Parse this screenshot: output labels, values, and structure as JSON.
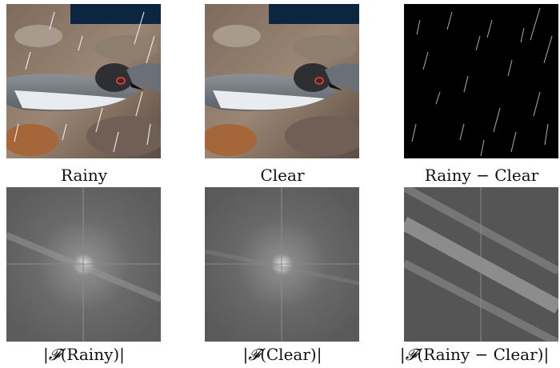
{
  "figure": {
    "panels": [
      {
        "caption": "Rainy",
        "kind": "photo-rainy"
      },
      {
        "caption": "Clear",
        "kind": "photo-clear"
      },
      {
        "caption": "Rainy − Clear",
        "kind": "rain-residual"
      },
      {
        "caption_prefix": "|",
        "caption_symbol": "𝓕",
        "caption_arg": "(Rainy)|",
        "kind": "spectrum-rainy"
      },
      {
        "caption_prefix": "|",
        "caption_symbol": "𝓕",
        "caption_arg": "(Clear)|",
        "kind": "spectrum-clear"
      },
      {
        "caption_prefix": "|",
        "caption_symbol": "𝓕",
        "caption_arg": "(Rainy − Clear)|",
        "kind": "spectrum-rain"
      }
    ]
  }
}
